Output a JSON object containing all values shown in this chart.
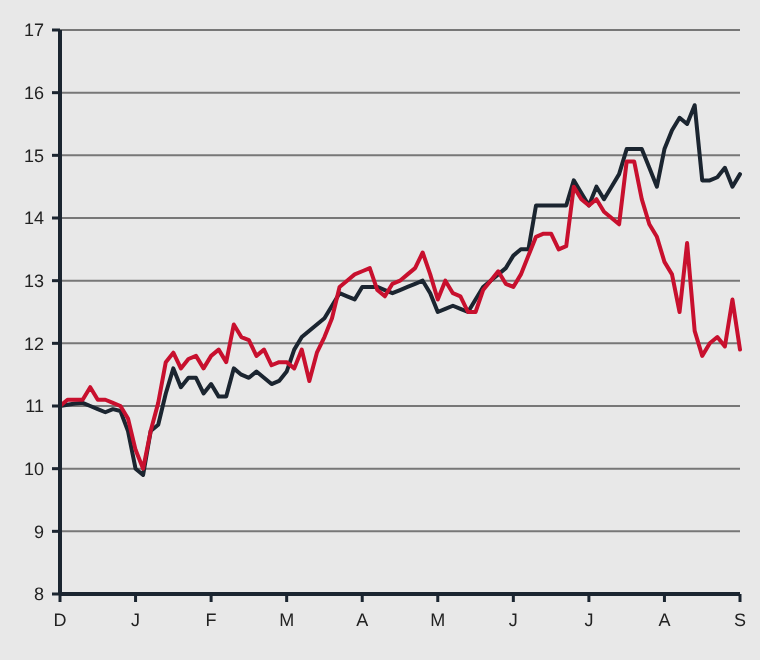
{
  "chart_data": {
    "type": "line",
    "ylim": [
      8,
      17
    ],
    "yticks": [
      8,
      9,
      10,
      11,
      12,
      13,
      14,
      15,
      16,
      17
    ],
    "categories": [
      "D",
      null,
      null,
      null,
      null,
      null,
      null,
      null,
      null,
      null,
      "J",
      null,
      null,
      null,
      null,
      null,
      null,
      null,
      null,
      null,
      "F",
      null,
      null,
      null,
      null,
      null,
      null,
      null,
      null,
      null,
      "M",
      null,
      null,
      null,
      null,
      null,
      null,
      null,
      null,
      null,
      "A",
      null,
      null,
      null,
      null,
      null,
      null,
      null,
      null,
      null,
      "M",
      null,
      null,
      null,
      null,
      null,
      null,
      null,
      null,
      null,
      "J",
      null,
      null,
      null,
      null,
      null,
      null,
      null,
      null,
      null,
      "J",
      null,
      null,
      null,
      null,
      null,
      null,
      null,
      null,
      null,
      "A",
      null,
      null,
      null,
      null,
      null,
      null,
      null,
      null,
      null,
      "S"
    ],
    "grid": "y",
    "marker": "none",
    "line_style": "solid",
    "series": [
      {
        "color": "#1b2530",
        "values": [
          11.0,
          11.02,
          11.04,
          11.05,
          11.0,
          10.95,
          10.9,
          10.95,
          10.92,
          10.6,
          10.0,
          9.9,
          10.6,
          10.7,
          11.2,
          11.6,
          11.3,
          11.45,
          11.45,
          11.2,
          11.35,
          11.15,
          11.15,
          11.6,
          11.5,
          11.45,
          11.55,
          11.45,
          11.35,
          11.4,
          11.55,
          11.9,
          12.1,
          12.2,
          12.3,
          12.4,
          12.6,
          12.8,
          12.75,
          12.7,
          12.9,
          12.9,
          12.9,
          12.85,
          12.8,
          12.85,
          12.9,
          12.95,
          13.0,
          12.8,
          12.5,
          12.55,
          12.6,
          12.55,
          12.5,
          12.7,
          12.9,
          13.0,
          13.1,
          13.2,
          13.4,
          13.5,
          13.5,
          14.2,
          14.2,
          14.2,
          14.2,
          14.2,
          14.6,
          14.4,
          14.2,
          14.5,
          14.3,
          14.5,
          14.7,
          15.1,
          15.1,
          15.1,
          14.8,
          14.5,
          15.1,
          15.4,
          15.6,
          15.5,
          15.8,
          14.6,
          14.6,
          14.65,
          14.8,
          14.5,
          14.7
        ]
      },
      {
        "color": "#c8102e",
        "values": [
          11.0,
          11.1,
          11.1,
          11.1,
          11.3,
          11.1,
          11.1,
          11.05,
          11.0,
          10.8,
          10.3,
          10.0,
          10.6,
          11.05,
          11.7,
          11.85,
          11.6,
          11.75,
          11.8,
          11.6,
          11.8,
          11.9,
          11.7,
          12.3,
          12.1,
          12.05,
          11.8,
          11.9,
          11.65,
          11.7,
          11.7,
          11.6,
          11.9,
          11.4,
          11.85,
          12.1,
          12.4,
          12.9,
          13.0,
          13.1,
          13.15,
          13.2,
          12.85,
          12.75,
          12.95,
          13.0,
          13.1,
          13.2,
          13.45,
          13.1,
          12.7,
          13.0,
          12.8,
          12.75,
          12.5,
          12.5,
          12.85,
          13.0,
          13.15,
          12.95,
          12.9,
          13.1,
          13.4,
          13.7,
          13.75,
          13.75,
          13.5,
          13.55,
          14.5,
          14.3,
          14.2,
          14.3,
          14.1,
          14.0,
          13.9,
          14.9,
          14.9,
          14.3,
          13.9,
          13.7,
          13.3,
          13.1,
          12.5,
          13.6,
          12.2,
          11.8,
          12.0,
          12.1,
          11.95,
          12.7,
          11.9
        ]
      }
    ]
  }
}
